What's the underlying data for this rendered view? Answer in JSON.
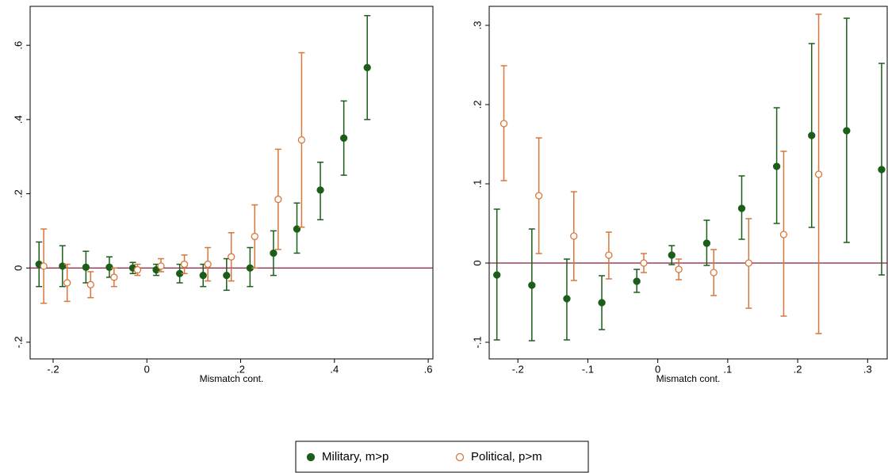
{
  "chart_data": [
    {
      "type": "errorbar",
      "xlabel": "Mismatch cont.",
      "xlim": [
        -0.249,
        0.61
      ],
      "ylim": [
        -0.245,
        0.705
      ],
      "xticks": [
        {
          "value": -0.2,
          "label": "-.2"
        },
        0,
        {
          "value": 0.2,
          "label": ".2"
        },
        {
          "value": 0.4,
          "label": ".4"
        },
        {
          "value": 0.6,
          "label": ".6"
        }
      ],
      "yticks": [
        {
          "value": -0.2,
          "label": "-.2"
        },
        0,
        {
          "value": 0.2,
          "label": ".2"
        },
        {
          "value": 0.4,
          "label": ".4"
        },
        {
          "value": 0.6,
          "label": ".6"
        }
      ],
      "yline": 0,
      "yline_color": "#8b1a3a",
      "series": [
        {
          "name": "Military, m>p",
          "color": "#1a5e1a",
          "marker": "filled",
          "x": [
            -0.23,
            -0.18,
            -0.13,
            -0.08,
            -0.03,
            0.02,
            0.07,
            0.12,
            0.17,
            0.22,
            0.27,
            0.32,
            0.37,
            0.42,
            0.47
          ],
          "values": [
            0.01,
            0.005,
            0.002,
            0.002,
            0.0,
            -0.005,
            -0.015,
            -0.02,
            -0.02,
            0.0,
            0.04,
            0.105,
            0.21,
            0.35,
            0.54
          ],
          "lower": [
            -0.05,
            -0.05,
            -0.04,
            -0.025,
            -0.015,
            -0.02,
            -0.04,
            -0.05,
            -0.06,
            -0.05,
            -0.02,
            0.04,
            0.13,
            0.25,
            0.4
          ],
          "upper": [
            0.07,
            0.06,
            0.045,
            0.03,
            0.015,
            0.01,
            0.01,
            0.01,
            0.025,
            0.055,
            0.1,
            0.175,
            0.285,
            0.45,
            0.68
          ]
        },
        {
          "name": "Political, p>m",
          "color": "#d9773a",
          "marker": "hollow",
          "x": [
            -0.22,
            -0.17,
            -0.12,
            -0.07,
            -0.02,
            0.03,
            0.08,
            0.13,
            0.18,
            0.23,
            0.28,
            0.33
          ],
          "values": [
            0.005,
            -0.04,
            -0.045,
            -0.025,
            -0.005,
            0.005,
            0.01,
            0.01,
            0.03,
            0.085,
            0.185,
            0.345
          ],
          "lower": [
            -0.095,
            -0.09,
            -0.08,
            -0.05,
            -0.02,
            -0.01,
            -0.015,
            -0.035,
            -0.035,
            0.0,
            0.05,
            0.11
          ],
          "upper": [
            0.105,
            0.01,
            -0.01,
            0.0,
            0.01,
            0.025,
            0.035,
            0.055,
            0.095,
            0.17,
            0.32,
            0.58
          ]
        }
      ]
    },
    {
      "type": "errorbar",
      "xlabel": "Mismatch cont.",
      "xlim": [
        -0.241,
        0.328
      ],
      "ylim": [
        -0.121,
        0.324
      ],
      "xticks": [
        {
          "value": -0.2,
          "label": "-.2"
        },
        {
          "value": -0.1,
          "label": "-.1"
        },
        0,
        {
          "value": 0.1,
          "label": ".1"
        },
        {
          "value": 0.2,
          "label": ".2"
        },
        {
          "value": 0.3,
          "label": ".3"
        }
      ],
      "yticks": [
        {
          "value": -0.1,
          "label": "-.1"
        },
        0,
        {
          "value": 0.1,
          "label": ".1"
        },
        {
          "value": 0.2,
          "label": ".2"
        },
        {
          "value": 0.3,
          "label": ".3"
        }
      ],
      "yline": 0,
      "yline_color": "#8b1a3a",
      "series": [
        {
          "color": "#1a5e1a",
          "marker": "filled",
          "x": [
            -0.23,
            -0.18,
            -0.13,
            -0.08,
            -0.03,
            0.02,
            0.07,
            0.12,
            0.17,
            0.22,
            0.27,
            0.32
          ],
          "values": [
            -0.015,
            -0.028,
            -0.045,
            -0.05,
            -0.023,
            0.01,
            0.025,
            0.069,
            0.122,
            0.161,
            0.167,
            0.118
          ],
          "lower": [
            -0.097,
            -0.098,
            -0.097,
            -0.084,
            -0.037,
            -0.002,
            -0.003,
            0.03,
            0.05,
            0.045,
            0.026,
            -0.015
          ],
          "upper": [
            0.068,
            0.043,
            0.005,
            -0.016,
            -0.008,
            0.022,
            0.054,
            0.11,
            0.196,
            0.277,
            0.309,
            0.252
          ]
        },
        {
          "color": "#d9773a",
          "marker": "hollow",
          "x": [
            -0.22,
            -0.17,
            -0.12,
            -0.07,
            -0.02,
            0.03,
            0.08,
            0.13,
            0.18,
            0.23
          ],
          "values": [
            0.176,
            0.085,
            0.034,
            0.01,
            0.0,
            -0.008,
            -0.012,
            0.0,
            0.036,
            0.112
          ],
          "lower": [
            0.104,
            0.012,
            -0.022,
            -0.02,
            -0.012,
            -0.021,
            -0.041,
            -0.057,
            -0.067,
            -0.089
          ],
          "upper": [
            0.249,
            0.158,
            0.09,
            0.039,
            0.012,
            0.005,
            0.017,
            0.056,
            0.141,
            0.314
          ]
        }
      ]
    }
  ]
}
